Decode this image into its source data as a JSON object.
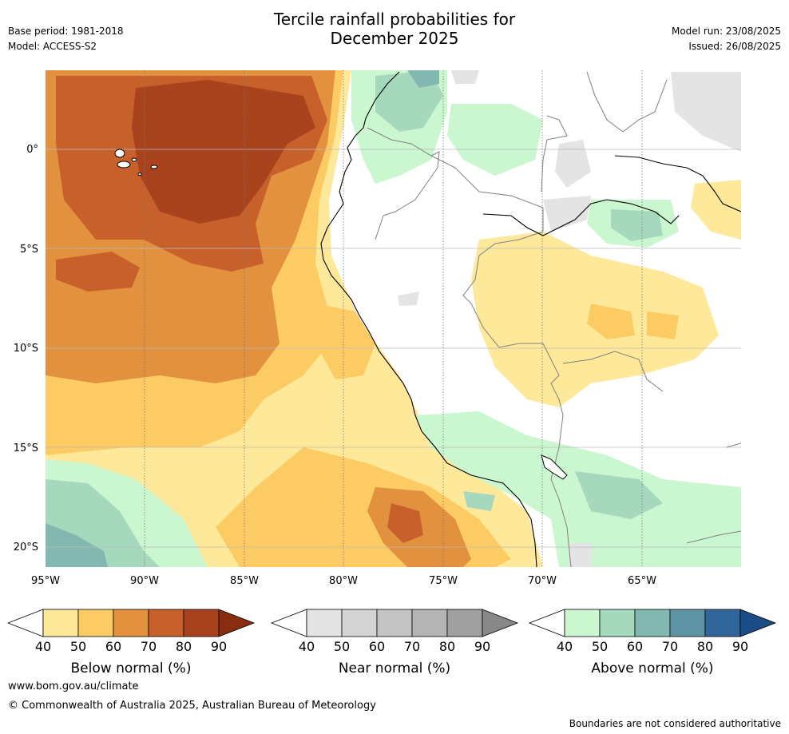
{
  "header": {
    "title_line1": "Tercile rainfall probabilities for",
    "title_line2": "December 2025",
    "base_period": "Base period: 1981-2018",
    "model": "Model: ACCESS-S2",
    "model_run": "Model run: 23/08/2025",
    "issued": "Issued: 26/08/2025"
  },
  "map": {
    "lat_labels": [
      "0°",
      "5°S",
      "10°S",
      "15°S",
      "20°S"
    ],
    "lon_labels": [
      "95°W",
      "90°W",
      "85°W",
      "80°W",
      "75°W",
      "70°W",
      "65°W"
    ]
  },
  "colorbars": [
    {
      "title": "Below normal (%)",
      "ticks": [
        "40",
        "50",
        "60",
        "70",
        "80",
        "90"
      ],
      "colors": [
        "#fee99a",
        "#fdcb64",
        "#e2913f",
        "#c8602c",
        "#a8431e",
        "#8a2c10"
      ]
    },
    {
      "title": "Near normal (%)",
      "ticks": [
        "40",
        "50",
        "60",
        "70",
        "80",
        "90"
      ],
      "colors": [
        "#e4e4e4",
        "#d4d4d4",
        "#c4c4c4",
        "#b4b4b4",
        "#a0a0a0",
        "#888888"
      ]
    },
    {
      "title": "Above normal (%)",
      "ticks": [
        "40",
        "50",
        "60",
        "70",
        "80",
        "90"
      ],
      "colors": [
        "#cbf7d0",
        "#a5d8bd",
        "#83b8b0",
        "#5d93a3",
        "#30669a",
        "#1a4d86"
      ]
    }
  ],
  "footer": {
    "url": "www.bom.gov.au/climate",
    "copyright": "© Commonwealth of Australia 2025, Australian Bureau of Meteorology",
    "disclaimer": "Boundaries are not considered authoritative"
  }
}
